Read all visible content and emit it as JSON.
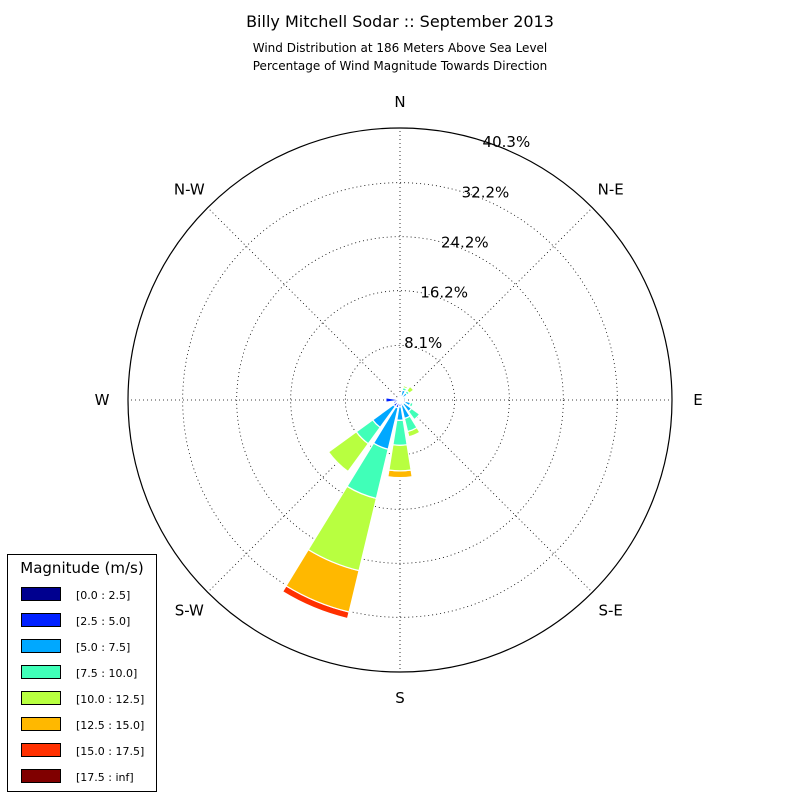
{
  "title": "Billy Mitchell Sodar :: September 2013",
  "subtitle_1": "Wind Distribution at 186 Meters Above Sea Level",
  "subtitle_2": "Percentage of Wind Magnitude Towards Direction",
  "chart_data": {
    "type": "windrose",
    "r_max": 40.3,
    "radial_ticks": [
      8.1,
      16.2,
      24.2,
      32.2,
      40.3
    ],
    "radial_tick_labels": [
      "8.1%",
      "16.2%",
      "24.2%",
      "32.2%",
      "40.3%"
    ],
    "direction_labels": [
      "N",
      "N-E",
      "E",
      "S-E",
      "S",
      "S-W",
      "W",
      "N-W"
    ],
    "grid": true,
    "legend_title": "Magnitude (m/s)",
    "legend_position": "bottom-left",
    "bins": [
      {
        "label": "[0.0 : 2.5]",
        "color": "#00008f"
      },
      {
        "label": "[2.5 : 5.0]",
        "color": "#0020ff"
      },
      {
        "label": "[5.0 : 7.5]",
        "color": "#00a8ff"
      },
      {
        "label": "[7.5 : 10.0]",
        "color": "#40ffb8"
      },
      {
        "label": "[10.0 : 12.5]",
        "color": "#b8ff40"
      },
      {
        "label": "[12.5 : 15.0]",
        "color": "#ffb800"
      },
      {
        "label": "[15.0 : 17.5]",
        "color": "#ff3000"
      },
      {
        "label": "[17.5 : inf]",
        "color": "#800000"
      }
    ],
    "sectors": [
      {
        "direction_deg": 0,
        "cumulative": [
          0.3,
          0.5,
          0.8,
          0.8,
          0.8,
          0.8,
          0.8,
          0.8
        ]
      },
      {
        "direction_deg": 22.5,
        "cumulative": [
          0.3,
          0.6,
          1.5,
          1.9,
          2.2,
          2.2,
          2.2,
          2.2
        ]
      },
      {
        "direction_deg": 45,
        "cumulative": [
          0.3,
          0.6,
          1.3,
          1.7,
          2.5,
          2.6,
          2.6,
          2.6
        ]
      },
      {
        "direction_deg": 67.5,
        "cumulative": [
          0.2,
          0.5,
          0.9,
          1.0,
          1.0,
          1.0,
          1.0,
          1.0
        ]
      },
      {
        "direction_deg": 90,
        "cumulative": [
          0.2,
          0.4,
          0.6,
          0.6,
          0.6,
          0.6,
          0.6,
          0.6
        ]
      },
      {
        "direction_deg": 112.5,
        "cumulative": [
          0.3,
          0.8,
          1.6,
          2.0,
          2.0,
          2.0,
          2.0,
          2.0
        ]
      },
      {
        "direction_deg": 135,
        "cumulative": [
          0.3,
          0.7,
          2.1,
          3.6,
          3.6,
          3.6,
          3.6,
          3.6
        ]
      },
      {
        "direction_deg": 157.5,
        "cumulative": [
          0.3,
          0.8,
          2.8,
          4.8,
          5.6,
          5.6,
          5.6,
          5.6
        ]
      },
      {
        "direction_deg": 180,
        "cumulative": [
          0.3,
          1.0,
          3.0,
          6.7,
          10.5,
          11.5,
          11.5,
          11.5
        ]
      },
      {
        "direction_deg": 202.5,
        "cumulative": [
          0.3,
          1.2,
          7.5,
          15.0,
          26.0,
          32.3,
          33.3,
          33.3
        ]
      },
      {
        "direction_deg": 225,
        "cumulative": [
          0.3,
          1.2,
          5.0,
          8.0,
          13.1,
          13.1,
          13.1,
          13.1
        ]
      },
      {
        "direction_deg": 247.5,
        "cumulative": [
          0.3,
          1.0,
          1.0,
          1.0,
          1.0,
          1.0,
          1.0,
          1.0
        ]
      },
      {
        "direction_deg": 270,
        "cumulative": [
          0.3,
          2.1,
          2.1,
          2.1,
          2.1,
          2.1,
          2.1,
          2.1
        ]
      },
      {
        "direction_deg": 292.5,
        "cumulative": [
          0.2,
          0.6,
          0.6,
          0.6,
          0.6,
          0.6,
          0.6,
          0.6
        ]
      },
      {
        "direction_deg": 315,
        "cumulative": [
          0.2,
          0.4,
          0.4,
          0.4,
          0.4,
          0.4,
          0.4,
          0.4
        ]
      },
      {
        "direction_deg": 337.5,
        "cumulative": [
          0.2,
          0.4,
          0.4,
          0.4,
          0.4,
          0.4,
          0.4,
          0.4
        ]
      }
    ]
  }
}
